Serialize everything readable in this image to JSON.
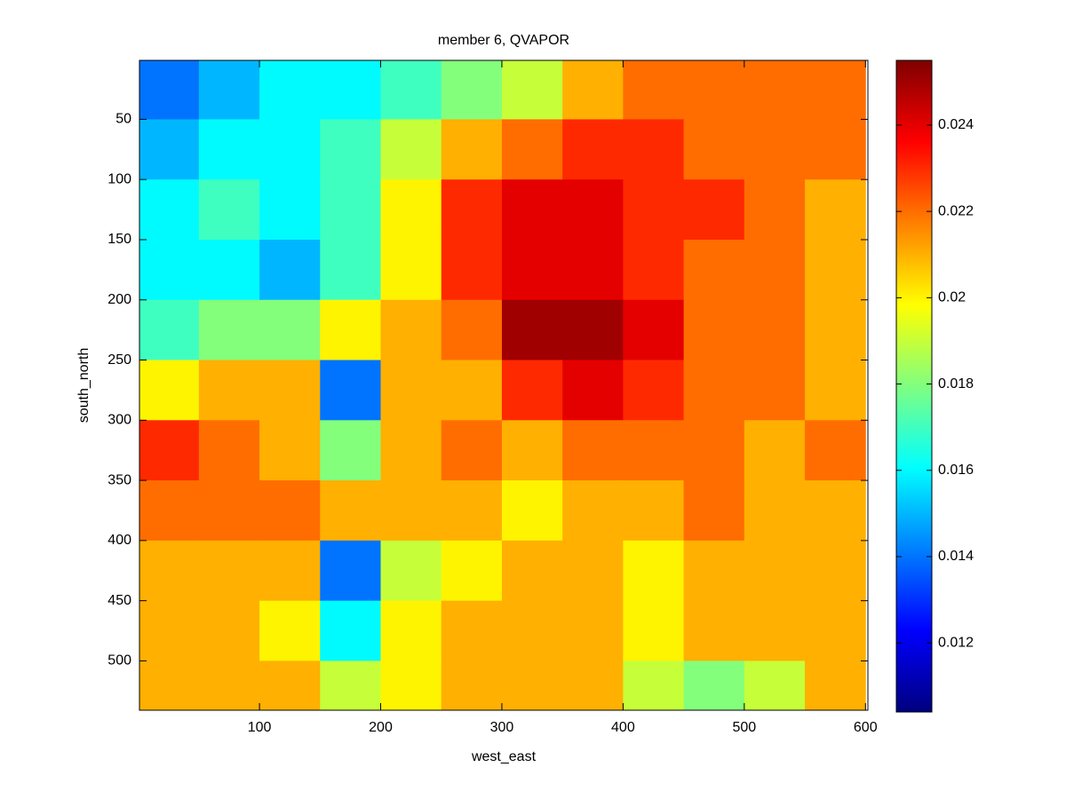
{
  "chart_data": {
    "type": "heatmap",
    "title": "member 6, QVAPOR",
    "x_label": "west_east",
    "y_label": "south_north",
    "x": [
      25,
      75,
      125,
      175,
      225,
      275,
      325,
      375,
      425,
      475,
      525,
      575
    ],
    "y": [
      25,
      75,
      125,
      175,
      225,
      275,
      325,
      375,
      425,
      475,
      525
    ],
    "z": [
      [
        0.014,
        0.015,
        0.016,
        0.016,
        0.017,
        0.018,
        0.019,
        0.021,
        0.022,
        0.022,
        0.022,
        0.022
      ],
      [
        0.015,
        0.016,
        0.016,
        0.017,
        0.019,
        0.021,
        0.022,
        0.023,
        0.023,
        0.022,
        0.022,
        0.022
      ],
      [
        0.016,
        0.017,
        0.016,
        0.017,
        0.02,
        0.023,
        0.024,
        0.024,
        0.023,
        0.023,
        0.022,
        0.021
      ],
      [
        0.016,
        0.016,
        0.015,
        0.017,
        0.02,
        0.023,
        0.024,
        0.024,
        0.023,
        0.022,
        0.022,
        0.021
      ],
      [
        0.017,
        0.018,
        0.018,
        0.02,
        0.021,
        0.022,
        0.025,
        0.025,
        0.024,
        0.022,
        0.022,
        0.021
      ],
      [
        0.02,
        0.021,
        0.021,
        0.014,
        0.021,
        0.021,
        0.023,
        0.024,
        0.023,
        0.022,
        0.022,
        0.021
      ],
      [
        0.023,
        0.022,
        0.021,
        0.018,
        0.021,
        0.022,
        0.021,
        0.022,
        0.022,
        0.022,
        0.021,
        0.022
      ],
      [
        0.022,
        0.022,
        0.022,
        0.021,
        0.021,
        0.021,
        0.02,
        0.021,
        0.021,
        0.022,
        0.021,
        0.021
      ],
      [
        0.021,
        0.021,
        0.021,
        0.014,
        0.019,
        0.02,
        0.021,
        0.021,
        0.02,
        0.021,
        0.021,
        0.021
      ],
      [
        0.021,
        0.021,
        0.02,
        0.016,
        0.02,
        0.021,
        0.021,
        0.021,
        0.02,
        0.021,
        0.021,
        0.021
      ],
      [
        0.021,
        0.021,
        0.021,
        0.019,
        0.02,
        0.021,
        0.021,
        0.021,
        0.019,
        0.018,
        0.019,
        0.021
      ]
    ],
    "xlim": [
      1,
      602
    ],
    "xticks": [
      100,
      200,
      300,
      400,
      500,
      600
    ],
    "ylim": [
      1,
      541
    ],
    "yticks": [
      50,
      100,
      150,
      200,
      250,
      300,
      350,
      400,
      450,
      500
    ],
    "y_reversed": true,
    "colormap": "jet",
    "clim": [
      0.0104,
      0.0255
    ],
    "cticks": [
      0.012,
      0.014,
      0.016,
      0.018,
      0.02,
      0.022,
      0.024
    ]
  }
}
